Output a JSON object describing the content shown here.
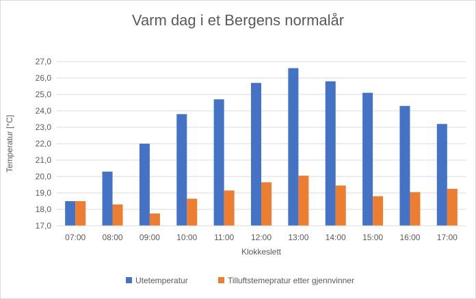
{
  "chart_data": {
    "type": "bar",
    "title": "Varm dag i et Bergens normalår",
    "xlabel": "Klokkeslett",
    "ylabel": "Temperatur [°C]",
    "ylim": [
      17.0,
      27.0
    ],
    "ytick_step": 1.0,
    "ytick_labels": [
      "17,0",
      "18,0",
      "19,0",
      "20,0",
      "21,0",
      "22,0",
      "23,0",
      "24,0",
      "25,0",
      "26,0",
      "27,0"
    ],
    "grid": true,
    "legend_position": "bottom",
    "categories": [
      "07:00",
      "08:00",
      "09:00",
      "10:00",
      "11:00",
      "12:00",
      "13:00",
      "14:00",
      "15:00",
      "16:00",
      "17:00"
    ],
    "series": [
      {
        "name": "Utetemperatur",
        "color": "#4472C4",
        "values": [
          18.5,
          20.3,
          22.0,
          23.8,
          24.7,
          25.7,
          26.6,
          25.8,
          25.1,
          24.3,
          23.2
        ]
      },
      {
        "name": "Tilluftstemepratur etter gjennvinner",
        "color": "#ED7D31",
        "values": [
          18.5,
          18.3,
          17.75,
          18.65,
          19.15,
          19.65,
          20.05,
          19.45,
          18.8,
          19.05,
          19.25
        ]
      }
    ]
  }
}
